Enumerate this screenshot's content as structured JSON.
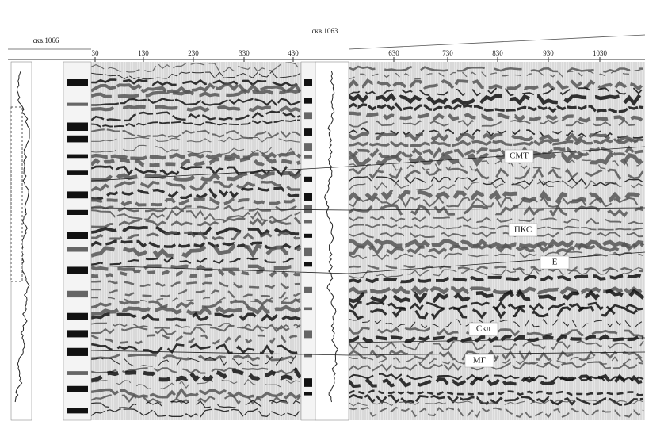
{
  "scale": {
    "left": [
      "30",
      "130",
      "230",
      "330",
      "430"
    ],
    "right": [
      "630",
      "730",
      "830",
      "930",
      "1030"
    ]
  },
  "wells": [
    "скв.1066",
    "скв.1063"
  ],
  "horizons": [
    "СМТ",
    "ПКС",
    "Е",
    "Скл",
    "МГ"
  ]
}
